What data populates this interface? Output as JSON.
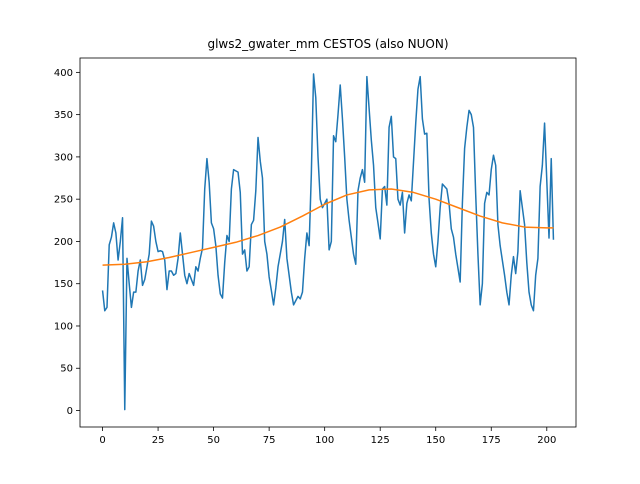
{
  "chart_data": {
    "type": "line",
    "title": "glws2_gwater_mm CESTOS (also NUON)",
    "xlim": [
      -10.15,
      213.15
    ],
    "ylim": [
      -19.5,
      417
    ],
    "xticks": [
      0,
      25,
      50,
      75,
      100,
      125,
      150,
      175,
      200
    ],
    "yticks": [
      0,
      50,
      100,
      150,
      200,
      250,
      300,
      350,
      400
    ],
    "series": [
      {
        "color": "#1f77b4",
        "x": [
          0,
          1,
          2,
          3,
          4,
          5,
          6,
          7,
          8,
          9,
          10,
          11,
          12,
          13,
          14,
          15,
          16,
          17,
          18,
          19,
          21,
          22,
          23,
          24,
          25,
          26,
          27,
          28,
          29,
          30,
          31,
          32,
          33,
          34,
          35,
          36,
          37,
          38,
          39,
          41,
          42,
          43,
          44,
          45,
          46,
          47,
          48,
          49,
          50,
          51,
          52,
          53,
          54,
          55,
          56,
          57,
          58,
          59,
          61,
          62,
          63,
          64,
          65,
          66,
          67,
          68,
          69,
          70,
          71,
          72,
          73,
          74,
          75,
          76,
          77,
          78,
          79,
          81,
          82,
          83,
          84,
          85,
          86,
          87,
          88,
          89,
          90,
          91,
          92,
          93,
          94,
          95,
          96,
          97,
          98,
          99,
          101,
          102,
          103,
          104,
          105,
          106,
          107,
          108,
          109,
          110,
          111,
          112,
          113,
          114,
          115,
          116,
          117,
          118,
          119,
          121,
          122,
          123,
          124,
          125,
          126,
          127,
          128,
          129,
          130,
          131,
          132,
          133,
          134,
          135,
          136,
          137,
          138,
          139,
          141,
          142,
          143,
          144,
          145,
          146,
          147,
          148,
          149,
          150,
          151,
          152,
          153,
          154,
          155,
          156,
          157,
          158,
          159,
          161,
          162,
          163,
          164,
          165,
          166,
          167,
          168,
          169,
          170,
          171,
          172,
          173,
          174,
          175,
          176,
          177,
          178,
          179,
          181,
          182,
          183,
          184,
          185,
          186,
          187,
          188,
          189,
          190,
          191,
          192,
          193,
          194,
          195,
          196,
          197,
          198,
          199,
          201,
          202,
          203
        ],
        "values": [
          142,
          118,
          122,
          196,
          205,
          222,
          210,
          178,
          200,
          228,
          1,
          180,
          150,
          122,
          140,
          140,
          165,
          178,
          148,
          155,
          185,
          224,
          218,
          200,
          188,
          189,
          188,
          178,
          143,
          165,
          165,
          160,
          162,
          180,
          210,
          185,
          160,
          150,
          162,
          148,
          170,
          165,
          180,
          192,
          262,
          298,
          270,
          222,
          215,
          195,
          160,
          138,
          133,
          175,
          207,
          200,
          262,
          285,
          282,
          258,
          185,
          190,
          165,
          170,
          220,
          225,
          260,
          323,
          295,
          275,
          200,
          185,
          158,
          142,
          125,
          145,
          170,
          200,
          226,
          180,
          160,
          140,
          125,
          130,
          135,
          132,
          140,
          180,
          210,
          195,
          280,
          398,
          370,
          300,
          250,
          240,
          250,
          190,
          200,
          325,
          318,
          350,
          385,
          345,
          300,
          250,
          225,
          205,
          185,
          173,
          260,
          275,
          285,
          270,
          395,
          320,
          290,
          240,
          222,
          203,
          262,
          265,
          243,
          335,
          348,
          300,
          298,
          250,
          243,
          258,
          210,
          245,
          255,
          248,
          340,
          380,
          395,
          345,
          327,
          328,
          250,
          210,
          185,
          170,
          200,
          240,
          268,
          265,
          262,
          245,
          215,
          205,
          185,
          152,
          245,
          310,
          335,
          355,
          350,
          335,
          255,
          185,
          125,
          150,
          245,
          258,
          255,
          285,
          302,
          290,
          220,
          195,
          160,
          140,
          125,
          160,
          182,
          162,
          188,
          260,
          240,
          220,
          175,
          140,
          125,
          118,
          160,
          180,
          265,
          290,
          340,
          204,
          298,
          202
        ]
      },
      {
        "color": "#ff7f0e",
        "x": [
          0,
          10,
          20,
          30,
          40,
          50,
          60,
          70,
          80,
          90,
          100,
          110,
          120,
          130,
          140,
          150,
          160,
          170,
          180,
          190,
          200,
          203
        ],
        "values": [
          172,
          173,
          176,
          181,
          187,
          193,
          199,
          207,
          217,
          230,
          244,
          255,
          261,
          262,
          258,
          250,
          240,
          230,
          222,
          217,
          216,
          216
        ]
      }
    ]
  }
}
